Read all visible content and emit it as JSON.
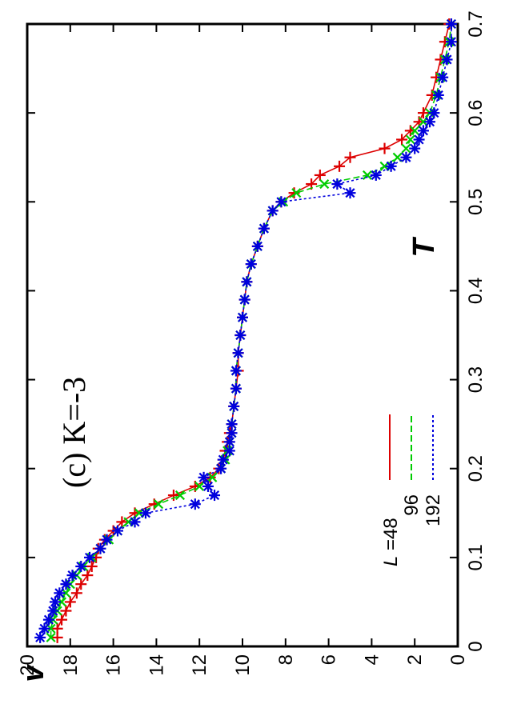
{
  "chart_data": {
    "type": "line",
    "title": "",
    "annotation": "(c)  K=-3",
    "xlabel": "T",
    "ylabel": "v",
    "xlim": [
      0,
      0.7
    ],
    "ylim": [
      0,
      20
    ],
    "x_ticks": [
      "0",
      "0.1",
      "0.2",
      "0.3",
      "0.4",
      "0.5",
      "0.6",
      "0.7"
    ],
    "y_ticks": [
      "0",
      "2",
      "4",
      "6",
      "8",
      "10",
      "12",
      "14",
      "16",
      "18",
      "20"
    ],
    "grid": false,
    "legend_title": "L",
    "legend_position": "bottom-center",
    "colors": {
      "L48": "#dd0000",
      "L96": "#00cc00",
      "L192": "#0000dd"
    },
    "series": [
      {
        "name": "=48",
        "marker": "plus",
        "line": "solid",
        "x": [
          0.01,
          0.02,
          0.03,
          0.04,
          0.05,
          0.06,
          0.07,
          0.08,
          0.09,
          0.1,
          0.11,
          0.12,
          0.13,
          0.14,
          0.15,
          0.16,
          0.17,
          0.18,
          0.19,
          0.2,
          0.21,
          0.22,
          0.23,
          0.24,
          0.25,
          0.27,
          0.29,
          0.31,
          0.33,
          0.35,
          0.37,
          0.39,
          0.41,
          0.43,
          0.45,
          0.47,
          0.49,
          0.5,
          0.51,
          0.52,
          0.53,
          0.54,
          0.55,
          0.56,
          0.57,
          0.58,
          0.59,
          0.6,
          0.62,
          0.64,
          0.66,
          0.68,
          0.7
        ],
        "y": [
          18.6,
          18.6,
          18.4,
          18.2,
          18.0,
          17.7,
          17.5,
          17.2,
          17.0,
          16.8,
          16.7,
          16.4,
          16.0,
          15.6,
          15.0,
          14.1,
          13.2,
          12.2,
          11.5,
          11.1,
          10.9,
          10.8,
          10.7,
          10.6,
          10.5,
          10.4,
          10.3,
          10.2,
          10.2,
          10.1,
          10.0,
          9.9,
          9.8,
          9.6,
          9.3,
          9.0,
          8.6,
          8.2,
          7.6,
          6.8,
          6.4,
          5.5,
          5.0,
          3.4,
          2.6,
          2.2,
          1.8,
          1.6,
          1.2,
          1.0,
          0.8,
          0.6,
          0.4
        ]
      },
      {
        "name": "96",
        "marker": "x",
        "line": "dashed",
        "x": [
          0.01,
          0.02,
          0.03,
          0.04,
          0.05,
          0.06,
          0.07,
          0.08,
          0.09,
          0.1,
          0.11,
          0.12,
          0.13,
          0.14,
          0.15,
          0.16,
          0.17,
          0.18,
          0.19,
          0.2,
          0.21,
          0.22,
          0.23,
          0.24,
          0.25,
          0.27,
          0.29,
          0.31,
          0.33,
          0.35,
          0.37,
          0.39,
          0.41,
          0.43,
          0.45,
          0.47,
          0.49,
          0.5,
          0.51,
          0.52,
          0.53,
          0.54,
          0.55,
          0.56,
          0.57,
          0.58,
          0.59,
          0.6,
          0.62,
          0.64,
          0.66,
          0.68,
          0.7
        ],
        "y": [
          18.9,
          18.9,
          18.8,
          18.6,
          18.4,
          18.2,
          18.0,
          17.7,
          17.4,
          17.0,
          16.6,
          16.2,
          15.8,
          15.3,
          14.8,
          13.9,
          12.9,
          12.0,
          11.4,
          11.0,
          10.8,
          10.7,
          10.6,
          10.5,
          10.5,
          10.4,
          10.3,
          10.3,
          10.2,
          10.1,
          10.0,
          9.9,
          9.8,
          9.6,
          9.3,
          9.0,
          8.6,
          8.1,
          7.5,
          6.2,
          4.2,
          3.4,
          2.8,
          2.4,
          2.2,
          2.0,
          1.6,
          1.3,
          1.0,
          0.8,
          0.6,
          0.4,
          0.3
        ]
      },
      {
        "name": "192",
        "marker": "star",
        "line": "dotted",
        "x": [
          0.01,
          0.02,
          0.03,
          0.04,
          0.05,
          0.06,
          0.07,
          0.08,
          0.09,
          0.1,
          0.11,
          0.12,
          0.13,
          0.14,
          0.15,
          0.16,
          0.17,
          0.18,
          0.19,
          0.2,
          0.21,
          0.22,
          0.23,
          0.24,
          0.25,
          0.27,
          0.29,
          0.31,
          0.33,
          0.35,
          0.37,
          0.39,
          0.41,
          0.43,
          0.45,
          0.47,
          0.49,
          0.5,
          0.51,
          0.52,
          0.53,
          0.54,
          0.55,
          0.56,
          0.57,
          0.58,
          0.59,
          0.6,
          0.62,
          0.64,
          0.66,
          0.68,
          0.7
        ],
        "y": [
          19.4,
          19.2,
          19.0,
          18.8,
          18.7,
          18.5,
          18.2,
          17.9,
          17.5,
          17.1,
          16.6,
          16.3,
          15.8,
          15.0,
          14.5,
          12.2,
          11.3,
          11.6,
          11.8,
          11.0,
          10.9,
          10.6,
          10.6,
          10.5,
          10.5,
          10.4,
          10.3,
          10.3,
          10.2,
          10.1,
          10.0,
          9.9,
          9.8,
          9.6,
          9.3,
          9.0,
          8.6,
          8.2,
          5.0,
          5.6,
          3.8,
          3.1,
          2.4,
          2.0,
          1.8,
          1.6,
          1.3,
          1.1,
          0.9,
          0.7,
          0.5,
          0.3,
          0.3
        ]
      }
    ]
  }
}
